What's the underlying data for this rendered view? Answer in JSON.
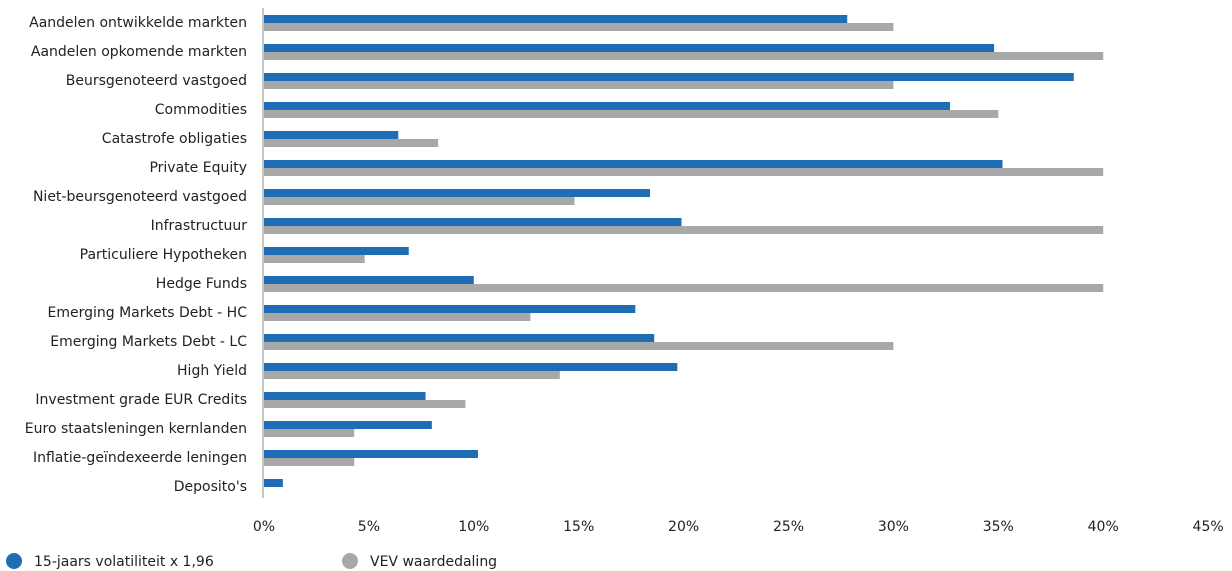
{
  "chart_data": {
    "type": "bar",
    "orientation": "horizontal",
    "categories": [
      "Aandelen ontwikkelde markten",
      "Aandelen opkomende markten",
      "Beursgenoteerd vastgoed",
      "Commodities",
      "Catastrofe obligaties",
      "Private Equity",
      "Niet-beursgenoteerd vastgoed",
      "Infrastructuur",
      "Particuliere Hypotheken",
      "Hedge Funds",
      "Emerging Markets Debt - HC",
      "Emerging Markets Debt - LC",
      "High Yield",
      "Investment grade EUR Credits",
      "Euro staatsleningen kernlanden",
      "Inflatie-geïndexeerde leningen",
      "Deposito's"
    ],
    "series": [
      {
        "name": "15-jaars volatiliteit x 1,96",
        "color": "#1f6db5",
        "values": [
          27.8,
          34.8,
          38.6,
          32.7,
          6.4,
          35.2,
          18.4,
          19.9,
          6.9,
          10.0,
          17.7,
          18.6,
          19.7,
          7.7,
          8.0,
          10.2,
          0.9
        ]
      },
      {
        "name": "VEV waardedaling",
        "color": "#a8a8a8",
        "values": [
          30.0,
          40.0,
          30.0,
          35.0,
          8.3,
          40.0,
          14.8,
          40.0,
          4.8,
          40.0,
          12.7,
          30.0,
          14.1,
          9.6,
          4.3,
          4.3,
          0
        ]
      }
    ],
    "xticks": [
      "0%",
      "5%",
      "10%",
      "15%",
      "20%",
      "25%",
      "30%",
      "35%",
      "40%",
      "45%"
    ],
    "xlim": [
      0,
      45
    ],
    "title": "",
    "xlabel": "",
    "ylabel": "",
    "grid": false,
    "legend_position": "bottom-left"
  }
}
